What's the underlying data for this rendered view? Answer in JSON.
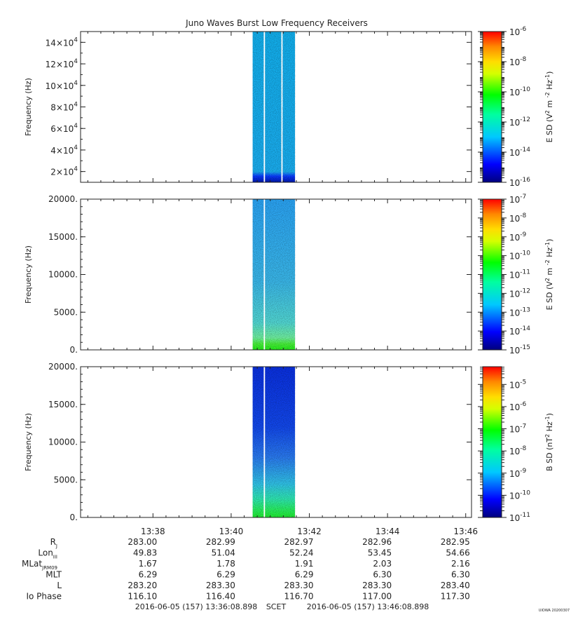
{
  "title": "Juno Waves Burst Low Frequency Receivers",
  "watermark": "UIOWA 20200307",
  "colors": {
    "axis": "#222222",
    "background": "#ffffff"
  },
  "chart_data": [
    {
      "type": "heatmap",
      "ylabel": "Frequency (Hz)",
      "ylim": [
        10000,
        150000
      ],
      "yticks": [
        {
          "value": 20000,
          "mant": "2×10",
          "exp": "4"
        },
        {
          "value": 40000,
          "mant": "4×10",
          "exp": "4"
        },
        {
          "value": 60000,
          "mant": "6×10",
          "exp": "4"
        },
        {
          "value": 80000,
          "mant": "8×10",
          "exp": "4"
        },
        {
          "value": 100000,
          "mant": "10×10",
          "exp": "4"
        },
        {
          "value": 120000,
          "mant": "12×10",
          "exp": "4"
        },
        {
          "value": 140000,
          "mant": "14×10",
          "exp": "4"
        }
      ],
      "bursts": [
        [
          "13:40:33",
          "13:40:50"
        ],
        [
          "13:40:52",
          "13:41:17"
        ],
        [
          "13:41:19",
          "13:41:38"
        ]
      ],
      "colorbar": {
        "label": "E SD (V",
        "label_tail": "m",
        "label_tail2": "Hz",
        "exps": [
          -6,
          -8,
          -10,
          -12,
          -14,
          -16
        ],
        "range_exp": [
          -16,
          -6
        ]
      }
    },
    {
      "type": "heatmap",
      "ylabel": "Frequency (Hz)",
      "ylim": [
        0,
        20000
      ],
      "yticks": [
        {
          "value": 0,
          "label": "0."
        },
        {
          "value": 5000,
          "label": "5000."
        },
        {
          "value": 10000,
          "label": "10000."
        },
        {
          "value": 15000,
          "label": "15000."
        },
        {
          "value": 20000,
          "label": "20000."
        }
      ],
      "bursts": [
        [
          "13:40:33",
          "13:40:50"
        ],
        [
          "13:40:52",
          "13:41:38"
        ]
      ],
      "colorbar": {
        "label": "E SD (V",
        "label_tail": "m",
        "label_tail2": "Hz",
        "exps": [
          -7,
          -8,
          -9,
          -10,
          -11,
          -12,
          -13,
          -14,
          -15
        ],
        "range_exp": [
          -15,
          -7
        ]
      }
    },
    {
      "type": "heatmap",
      "ylabel": "Frequency (Hz)",
      "ylim": [
        0,
        20000
      ],
      "yticks": [
        {
          "value": 0,
          "label": "0."
        },
        {
          "value": 5000,
          "label": "5000."
        },
        {
          "value": 10000,
          "label": "10000."
        },
        {
          "value": 15000,
          "label": "15000."
        },
        {
          "value": 20000,
          "label": "20000."
        }
      ],
      "bursts": [
        [
          "13:40:33",
          "13:40:50"
        ],
        [
          "13:40:52",
          "13:41:38"
        ]
      ],
      "colorbar": {
        "label": "B SD (nT",
        "label_tail": "Hz",
        "exps": [
          -5,
          -6,
          -7,
          -8,
          -9,
          -10,
          -11
        ],
        "range_exp": [
          -11,
          -4.2
        ]
      }
    }
  ],
  "xaxis": {
    "range": [
      "13:36:08.898",
      "13:46:08.898"
    ],
    "ticks": [
      "13:38",
      "13:40",
      "13:42",
      "13:44",
      "13:46"
    ]
  },
  "ephemeris": [
    {
      "label": "R",
      "sub": "J",
      "values": [
        "283.00",
        "282.99",
        "282.97",
        "282.96",
        "282.95"
      ]
    },
    {
      "label": "Lon",
      "sub": "III",
      "values": [
        "49.83",
        "51.04",
        "52.24",
        "53.45",
        "54.66"
      ]
    },
    {
      "label": "MLat",
      "sub": "JRM09",
      "values": [
        "1.67",
        "1.78",
        "1.91",
        "2.03",
        "2.16"
      ]
    },
    {
      "label": "MLT",
      "sub": "",
      "values": [
        "6.29",
        "6.29",
        "6.29",
        "6.30",
        "6.30"
      ]
    },
    {
      "label": "L",
      "sub": "",
      "values": [
        "283.20",
        "283.30",
        "283.30",
        "283.30",
        "283.40"
      ]
    },
    {
      "label": "Io Phase",
      "sub": "",
      "values": [
        "116.10",
        "116.40",
        "116.70",
        "117.00",
        "117.30"
      ]
    }
  ],
  "footer": {
    "start": "2016-06-05 (157) 13:36:08.898",
    "frame": "SCET",
    "end": "2016-06-05 (157) 13:46:08.898"
  }
}
